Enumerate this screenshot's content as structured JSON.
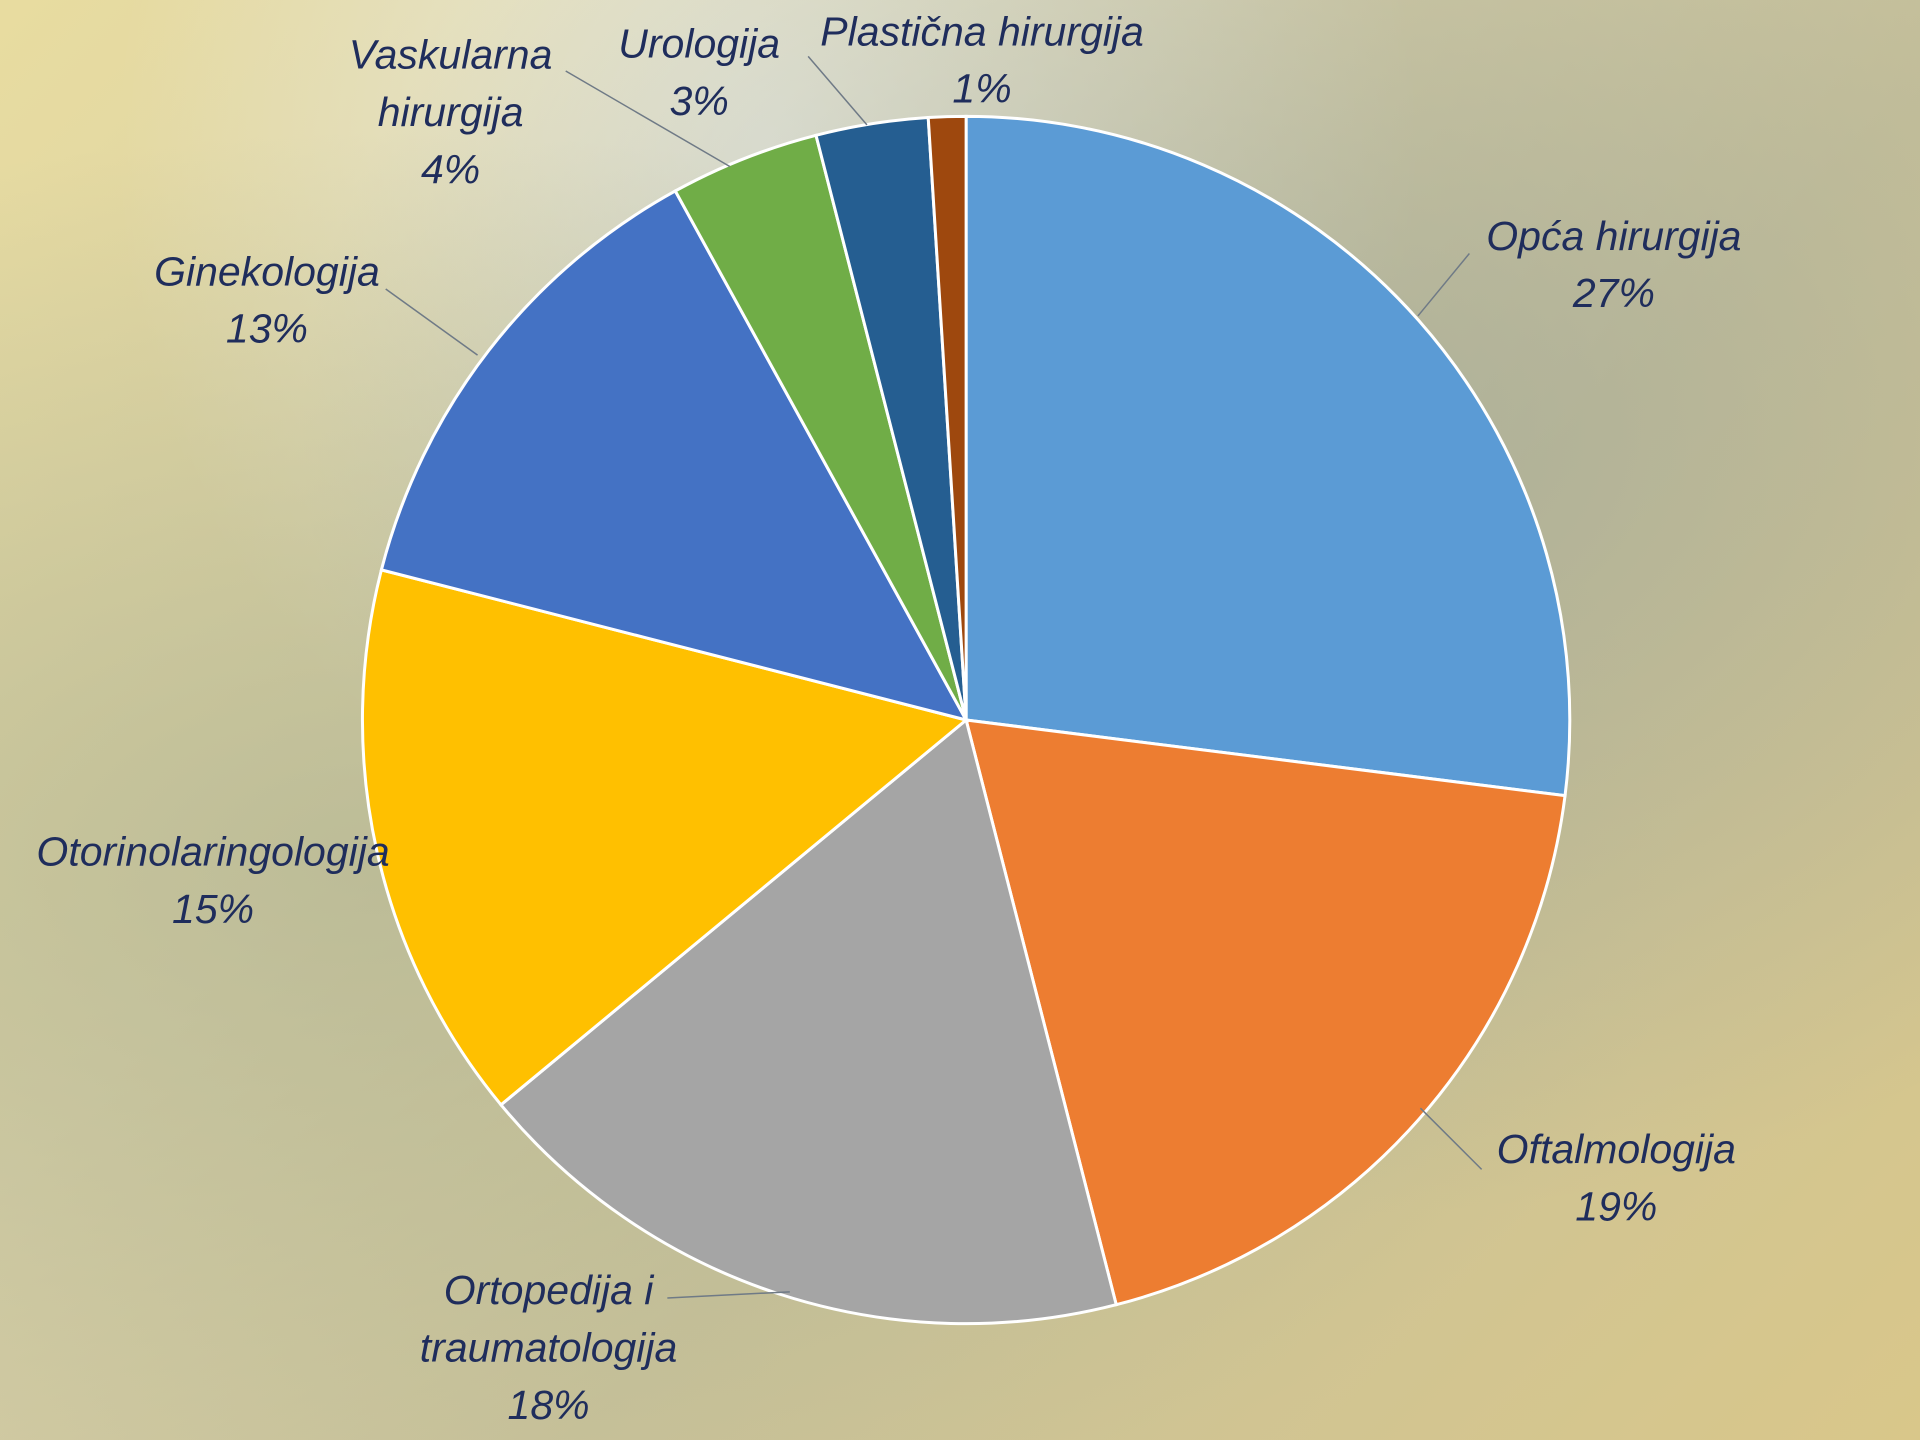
{
  "chart_data": {
    "type": "pie",
    "categories": [
      "Opća hirurgija",
      "Oftalmologija",
      "Ortopedija i traumatologija",
      "Otorinolaringologija",
      "Ginekologija",
      "Vaskularna hirurgija",
      "Urologija",
      "Plastična hirurgija"
    ],
    "values": [
      27,
      19,
      18,
      15,
      13,
      4,
      3,
      1
    ],
    "value_labels": [
      "27%",
      "19%",
      "18%",
      "15%",
      "13%",
      "4%",
      "3%",
      "1%"
    ],
    "colors": [
      "#5b9bd5",
      "#ed7d31",
      "#a5a5a5",
      "#ffc000",
      "#4472c4",
      "#70ad47",
      "#255e91",
      "#9e480e"
    ]
  }
}
